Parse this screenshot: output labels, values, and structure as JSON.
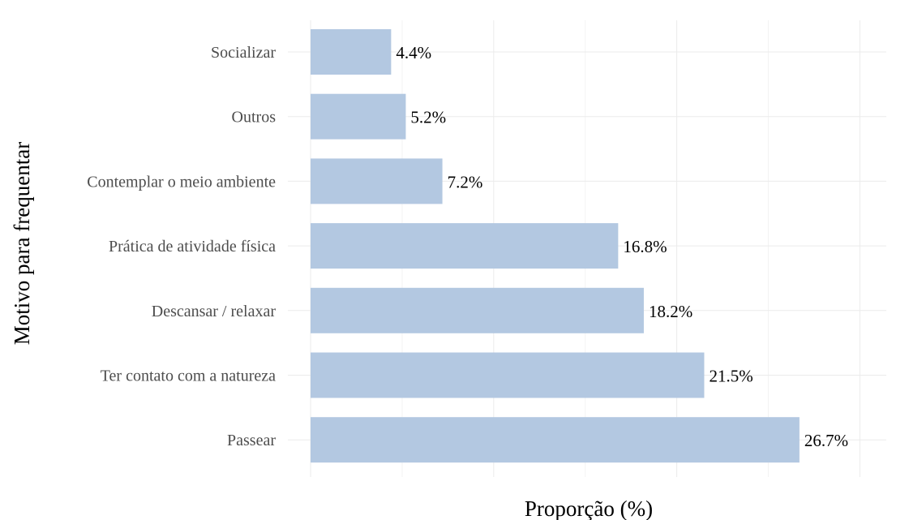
{
  "colors": {
    "bar": "#b3c8e1",
    "grid": "#ebebeb",
    "category_text": "#4d4d4d",
    "value_text": "#000000"
  },
  "chart_data": {
    "type": "bar",
    "orientation": "horizontal",
    "categories": [
      "Socializar",
      "Outros",
      "Contemplar o meio ambiente",
      "Prática de atividade física",
      "Descansar / relaxar",
      "Ter contato com a natureza",
      "Passear"
    ],
    "values": [
      4.4,
      5.2,
      7.2,
      16.8,
      18.2,
      21.5,
      26.7
    ],
    "value_labels": [
      "4.4%",
      "5.2%",
      "7.2%",
      "16.8%",
      "18.2%",
      "21.5%",
      "26.7%"
    ],
    "xlabel": "Proporção (%)",
    "ylabel": "Motivo para frequentar",
    "xlim": [
      0,
      30
    ],
    "grid": true,
    "x_tick_labels_visible": false
  }
}
